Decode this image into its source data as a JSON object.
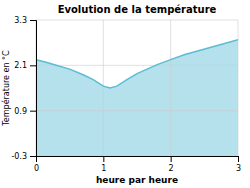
{
  "chart_data": {
    "type": "area",
    "title": "Evolution de la température",
    "xlabel": "heure par heure",
    "ylabel": "Température en °C",
    "x": [
      0.0,
      0.15,
      0.3,
      0.5,
      0.7,
      0.85,
      1.0,
      1.1,
      1.2,
      1.35,
      1.5,
      1.65,
      1.8,
      2.0,
      2.2,
      2.4,
      2.6,
      2.8,
      3.0
    ],
    "values": [
      2.25,
      2.18,
      2.1,
      2.0,
      1.85,
      1.72,
      1.55,
      1.5,
      1.55,
      1.72,
      1.88,
      2.0,
      2.12,
      2.25,
      2.38,
      2.48,
      2.58,
      2.68,
      2.78
    ],
    "color": "#5bbcd4",
    "xlim": [
      0,
      3
    ],
    "ylim": [
      -0.3,
      3.3
    ],
    "xticks": [
      0,
      1,
      2,
      3
    ],
    "yticks": [
      -0.3,
      0.9,
      2.1,
      3.3
    ],
    "grid": true
  }
}
